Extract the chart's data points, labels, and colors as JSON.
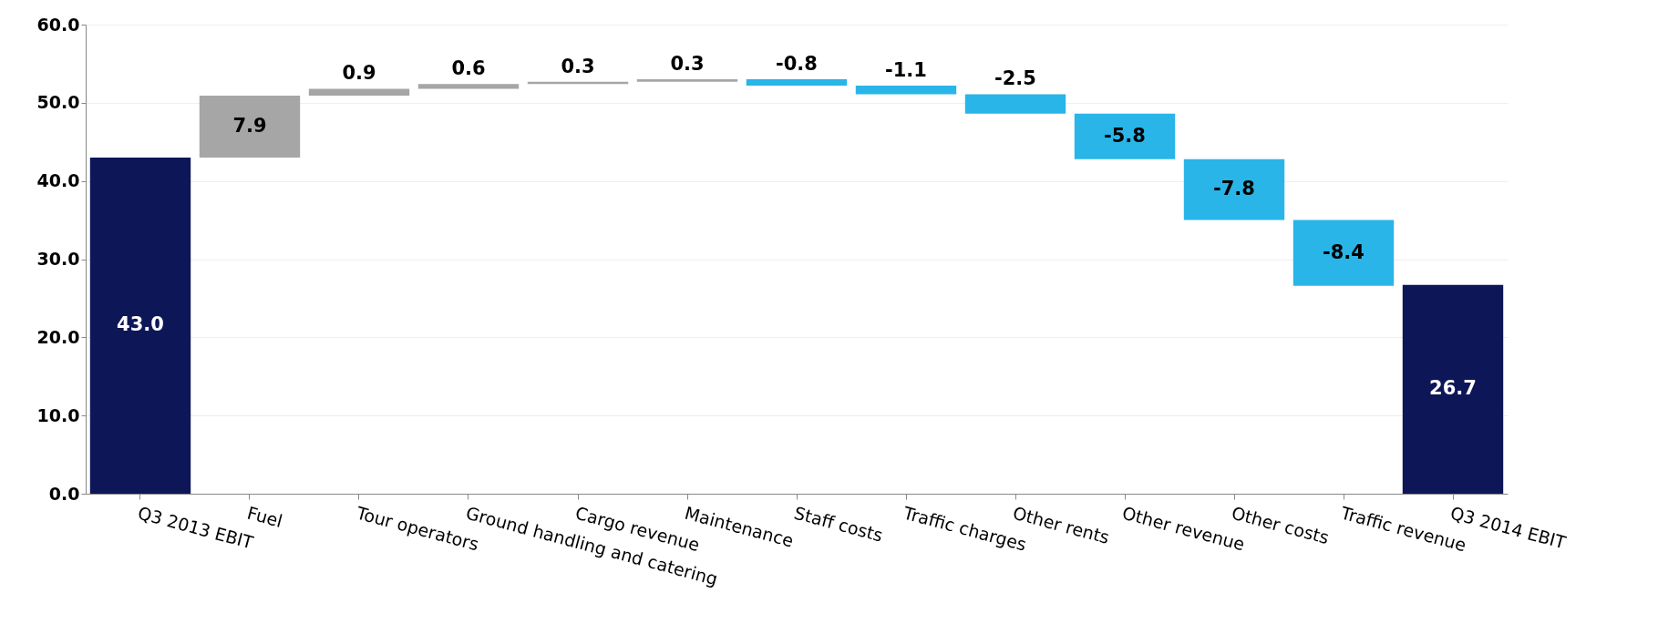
{
  "chart_data": {
    "type": "bar",
    "categories": [
      "Q3 2013 EBIT",
      "Fuel",
      "Tour operators",
      "Ground handling and catering",
      "Cargo revenue",
      "Maintenance",
      "Staff costs",
      "Traffic charges",
      "Other rents",
      "Other revenue",
      "Other costs",
      "Traffic revenue",
      "Q3 2014 EBIT"
    ],
    "values": [
      43.0,
      7.9,
      0.9,
      0.6,
      0.3,
      0.3,
      -0.8,
      -1.1,
      -2.5,
      -5.8,
      -7.8,
      -8.4,
      26.7
    ],
    "base": [
      0,
      43.0,
      50.9,
      51.8,
      52.4,
      52.7,
      53.0,
      52.2,
      51.1,
      48.6,
      42.8,
      35.0,
      0
    ],
    "colors": [
      "#0d1657",
      "#a6a6a6",
      "#a6a6a6",
      "#a6a6a6",
      "#a6a6a6",
      "#a6a6a6",
      "#29b5e8",
      "#29b5e8",
      "#29b5e8",
      "#29b5e8",
      "#29b5e8",
      "#29b5e8",
      "#0d1657"
    ],
    "ylim": [
      0,
      60
    ],
    "yticks": [
      {
        "value": 0,
        "label": "0.0"
      },
      {
        "value": 10,
        "label": "10.0"
      },
      {
        "value": 20,
        "label": "20.0"
      },
      {
        "value": 30,
        "label": "30.0"
      },
      {
        "value": 40,
        "label": "40.0"
      },
      {
        "value": 50,
        "label": "50.0"
      },
      {
        "value": 60,
        "label": "60.0"
      }
    ],
    "value_labels": [
      "43.0",
      "7.9",
      "0.9",
      "0.6",
      "0.3",
      "0.3",
      "-0.8",
      "-1.1",
      "-2.5",
      "-5.8",
      "-7.8",
      "-8.4",
      "26.7"
    ],
    "grid": "y"
  }
}
